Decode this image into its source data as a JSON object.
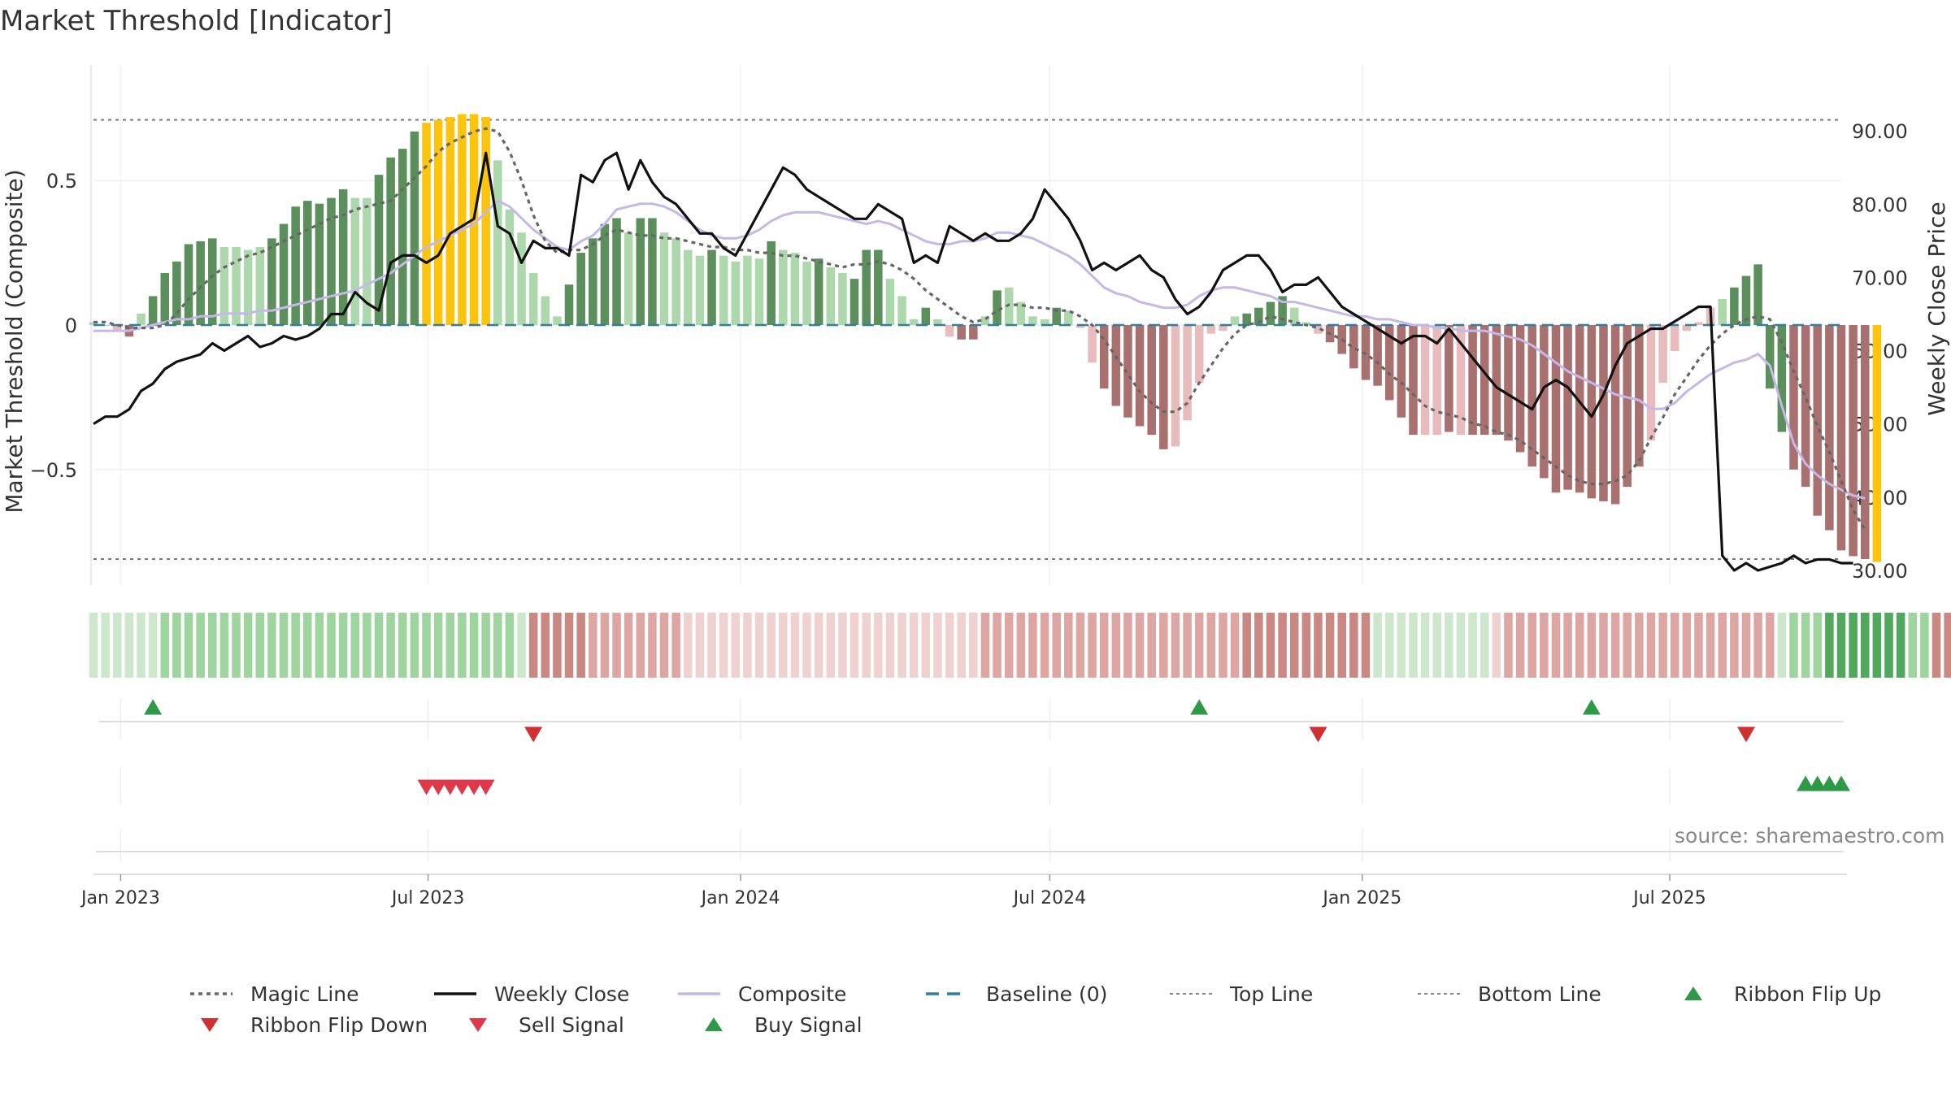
{
  "title": "Market Threshold [Indicator]",
  "source": "source: sharemaestro.com",
  "colors": {
    "strong_green": "#5b8f5b",
    "light_green": "#acd8ac",
    "strong_red": "#a8706e",
    "light_red": "#e8bcbc",
    "yellow": "#fcc40c",
    "close_line": "#111111",
    "composite_line": "#c5b8e8",
    "magic_line": "#666666",
    "baseline": "#2e7ea6",
    "ribbon_up": "#2e9a48",
    "ribbon_down": "#d03030",
    "sell": "#e03848",
    "buy": "#2e9a48"
  },
  "chart_data": {
    "type": "bar",
    "ylabel_left": "Market Threshold (Composite)",
    "ylabel_right": "Weekly Close Price",
    "ylim_left": [
      -0.9,
      0.9
    ],
    "ylim_right": [
      28,
      99
    ],
    "yticks_left": [
      -0.5,
      0,
      0.5
    ],
    "ytick_labels_left": [
      "−0.5",
      "0",
      "0.5"
    ],
    "yticks_right": [
      30,
      40,
      50,
      60,
      70,
      80,
      90
    ],
    "ytick_labels_right": [
      "30.00",
      "40.00",
      "50.00",
      "60.00",
      "70.00",
      "80.00",
      "90.00"
    ],
    "top_line": 0.71,
    "bottom_line": -0.81,
    "x_start": "2022-12-16",
    "x_end": "2025-10-10",
    "xticks": [
      "2023-01-01",
      "2023-07-01",
      "2024-01-01",
      "2024-07-01",
      "2025-01-01",
      "2025-07-01"
    ],
    "xtick_labels": [
      "Jan 2023",
      "Jul 2023",
      "Jan 2024",
      "Jul 2024",
      "Jan 2025",
      "Jul 2025"
    ],
    "weeks": 148,
    "first_week": "2022-12-16",
    "histogram": [
      0.01,
      0,
      -0.02,
      -0.04,
      0.04,
      0.1,
      0.18,
      0.22,
      0.28,
      0.29,
      0.3,
      0.27,
      0.27,
      0.26,
      0.27,
      0.3,
      0.35,
      0.41,
      0.43,
      0.42,
      0.44,
      0.47,
      0.44,
      0.44,
      0.52,
      0.58,
      0.61,
      0.67,
      0.7,
      0.71,
      0.72,
      0.73,
      0.73,
      0.72,
      0.57,
      0.4,
      0.32,
      0.18,
      0.1,
      0.03,
      0.14,
      0.25,
      0.3,
      0.35,
      0.37,
      0.32,
      0.37,
      0.37,
      0.32,
      0.3,
      0.26,
      0.24,
      0.26,
      0.24,
      0.22,
      0.24,
      0.23,
      0.29,
      0.26,
      0.25,
      0.22,
      0.23,
      0.2,
      0.18,
      0.16,
      0.26,
      0.26,
      0.16,
      0.1,
      0.02,
      0.06,
      0.02,
      -0.04,
      -0.05,
      -0.05,
      0.03,
      0.12,
      0.13,
      0.08,
      0.03,
      0.02,
      0.06,
      0.05,
      -0.01,
      -0.13,
      -0.22,
      -0.28,
      -0.32,
      -0.35,
      -0.38,
      -0.43,
      -0.42,
      -0.33,
      -0.2,
      -0.03,
      -0.02,
      0.03,
      0.04,
      0.06,
      0.08,
      0.1,
      0.06,
      0.01,
      -0.03,
      -0.06,
      -0.1,
      -0.15,
      -0.19,
      -0.21,
      -0.26,
      -0.32,
      -0.38,
      -0.38,
      -0.38,
      -0.37,
      -0.38,
      -0.38,
      -0.38,
      -0.38,
      -0.4,
      -0.44,
      -0.49,
      -0.53,
      -0.58,
      -0.57,
      -0.58,
      -0.6,
      -0.61,
      -0.62,
      -0.56,
      -0.49,
      -0.4,
      -0.2,
      -0.09,
      -0.02,
      0.01,
      0.06,
      0.09,
      0.13,
      0.17,
      0.21,
      -0.22,
      -0.37,
      -0.5,
      -0.56,
      -0.66,
      -0.71,
      -0.78,
      -0.8,
      -0.81,
      -0.82
    ],
    "hist_colors": [
      "light_green",
      "light_green",
      "light_red",
      "strong_red",
      "light_green",
      "strong_green",
      "strong_green",
      "strong_green",
      "strong_green",
      "strong_green",
      "strong_green",
      "light_green",
      "light_green",
      "light_green",
      "light_green",
      "strong_green",
      "strong_green",
      "strong_green",
      "strong_green",
      "strong_green",
      "strong_green",
      "strong_green",
      "light_green",
      "light_green",
      "strong_green",
      "strong_green",
      "strong_green",
      "strong_green",
      "yellow",
      "yellow",
      "yellow",
      "yellow",
      "yellow",
      "yellow",
      "light_green",
      "light_green",
      "light_green",
      "light_green",
      "light_green",
      "light_green",
      "strong_green",
      "strong_green",
      "strong_green",
      "strong_green",
      "strong_green",
      "light_green",
      "strong_green",
      "strong_green",
      "light_green",
      "light_green",
      "light_green",
      "light_green",
      "strong_green",
      "light_green",
      "light_green",
      "light_green",
      "light_green",
      "strong_green",
      "light_green",
      "light_green",
      "light_green",
      "strong_green",
      "light_green",
      "light_green",
      "strong_green",
      "strong_green",
      "strong_green",
      "light_green",
      "light_green",
      "light_green",
      "strong_green",
      "light_green",
      "light_red",
      "strong_red",
      "strong_red",
      "light_green",
      "strong_green",
      "light_green",
      "light_green",
      "light_green",
      "light_green",
      "strong_green",
      "light_green",
      "light_red",
      "light_red",
      "strong_red",
      "strong_red",
      "strong_red",
      "strong_red",
      "strong_red",
      "strong_red",
      "light_red",
      "light_red",
      "light_red",
      "light_red",
      "light_red",
      "light_green",
      "strong_green",
      "strong_green",
      "strong_green",
      "strong_green",
      "light_green",
      "light_green",
      "light_red",
      "strong_red",
      "strong_red",
      "strong_red",
      "strong_red",
      "strong_red",
      "strong_red",
      "strong_red",
      "strong_red",
      "light_red",
      "light_red",
      "strong_red",
      "light_red",
      "strong_red",
      "strong_red",
      "strong_red",
      "strong_red",
      "strong_red",
      "strong_red",
      "strong_red",
      "strong_red",
      "strong_red",
      "strong_red",
      "strong_red",
      "strong_red",
      "strong_red",
      "strong_red",
      "strong_red",
      "light_red",
      "light_red",
      "light_red",
      "light_red",
      "light_red",
      "light_red",
      "light_green",
      "strong_green",
      "strong_green",
      "strong_green",
      "strong_green",
      "strong_green",
      "strong_red",
      "strong_red",
      "strong_red",
      "strong_red",
      "strong_red",
      "strong_red",
      "strong_red",
      "yellow",
      "yellow",
      "yellow"
    ],
    "composite": [
      -0.02,
      -0.02,
      -0.02,
      -0.02,
      -0.01,
      0,
      0.01,
      0.02,
      0.02,
      0.03,
      0.03,
      0.04,
      0.04,
      0.04,
      0.05,
      0.05,
      0.06,
      0.07,
      0.08,
      0.09,
      0.1,
      0.11,
      0.12,
      0.14,
      0.16,
      0.18,
      0.21,
      0.24,
      0.27,
      0.29,
      0.31,
      0.33,
      0.35,
      0.39,
      0.43,
      0.41,
      0.37,
      0.33,
      0.3,
      0.27,
      0.26,
      0.29,
      0.31,
      0.35,
      0.4,
      0.41,
      0.42,
      0.42,
      0.41,
      0.39,
      0.36,
      0.33,
      0.31,
      0.3,
      0.3,
      0.31,
      0.33,
      0.36,
      0.38,
      0.39,
      0.39,
      0.39,
      0.38,
      0.37,
      0.36,
      0.35,
      0.36,
      0.35,
      0.33,
      0.31,
      0.29,
      0.28,
      0.28,
      0.29,
      0.29,
      0.3,
      0.32,
      0.32,
      0.31,
      0.3,
      0.28,
      0.26,
      0.24,
      0.21,
      0.17,
      0.13,
      0.11,
      0.1,
      0.08,
      0.07,
      0.06,
      0.06,
      0.07,
      0.1,
      0.12,
      0.13,
      0.13,
      0.12,
      0.11,
      0.1,
      0.08,
      0.08,
      0.07,
      0.06,
      0.05,
      0.04,
      0.03,
      0.03,
      0.02,
      0.02,
      0.01,
      0,
      0,
      -0.01,
      -0.01,
      -0.02,
      -0.02,
      -0.02,
      -0.03,
      -0.04,
      -0.05,
      -0.07,
      -0.1,
      -0.13,
      -0.16,
      -0.18,
      -0.2,
      -0.22,
      -0.24,
      -0.25,
      -0.26,
      -0.29,
      -0.29,
      -0.27,
      -0.23,
      -0.2,
      -0.17,
      -0.15,
      -0.13,
      -0.12,
      -0.1,
      -0.14,
      -0.28,
      -0.41,
      -0.48,
      -0.52,
      -0.55,
      -0.57,
      -0.59,
      -0.6
    ],
    "magic_line": [
      0.01,
      0.01,
      0,
      -0.01,
      -0.01,
      -0.01,
      0,
      0.04,
      0.09,
      0.13,
      0.17,
      0.2,
      0.22,
      0.24,
      0.25,
      0.27,
      0.29,
      0.31,
      0.33,
      0.35,
      0.37,
      0.38,
      0.4,
      0.41,
      0.42,
      0.43,
      0.47,
      0.51,
      0.55,
      0.6,
      0.63,
      0.65,
      0.67,
      0.68,
      0.67,
      0.6,
      0.5,
      0.38,
      0.29,
      0.25,
      0.26,
      0.26,
      0.28,
      0.31,
      0.33,
      0.32,
      0.31,
      0.31,
      0.3,
      0.3,
      0.29,
      0.28,
      0.27,
      0.27,
      0.26,
      0.26,
      0.25,
      0.25,
      0.24,
      0.24,
      0.23,
      0.22,
      0.21,
      0.2,
      0.21,
      0.21,
      0.22,
      0.21,
      0.19,
      0.16,
      0.12,
      0.09,
      0.06,
      0.03,
      0.01,
      0.02,
      0.05,
      0.07,
      0.07,
      0.06,
      0.06,
      0.05,
      0.05,
      0.03,
      0,
      -0.05,
      -0.11,
      -0.17,
      -0.23,
      -0.27,
      -0.3,
      -0.3,
      -0.27,
      -0.2,
      -0.14,
      -0.08,
      -0.03,
      0,
      0.01,
      0.03,
      0.02,
      0.01,
      0,
      -0.01,
      -0.03,
      -0.05,
      -0.08,
      -0.1,
      -0.13,
      -0.17,
      -0.2,
      -0.24,
      -0.28,
      -0.3,
      -0.31,
      -0.32,
      -0.34,
      -0.35,
      -0.37,
      -0.38,
      -0.4,
      -0.43,
      -0.46,
      -0.49,
      -0.52,
      -0.54,
      -0.55,
      -0.55,
      -0.54,
      -0.52,
      -0.47,
      -0.39,
      -0.32,
      -0.24,
      -0.18,
      -0.12,
      -0.07,
      -0.03,
      0,
      0.02,
      0.03,
      0.02,
      -0.06,
      -0.16,
      -0.25,
      -0.35,
      -0.44,
      -0.54,
      -0.64,
      -0.71
    ],
    "weekly_close": [
      50,
      51,
      51,
      52,
      54.5,
      55.5,
      57.5,
      58.5,
      59,
      59.5,
      61,
      60,
      61,
      62,
      60.5,
      61,
      62,
      61.5,
      62,
      63,
      65,
      65,
      68,
      66.5,
      65.5,
      72,
      73,
      73,
      72,
      73,
      76,
      77,
      78,
      87,
      77,
      76,
      72,
      75,
      74,
      74,
      73,
      84,
      83,
      86,
      87,
      82,
      86,
      83,
      81,
      80,
      78,
      76,
      76,
      74,
      73,
      76,
      79,
      82,
      85,
      84,
      82,
      81,
      80,
      79,
      78,
      78,
      80,
      79,
      78,
      72,
      73,
      72,
      77,
      76,
      75,
      76,
      75,
      75,
      76,
      78,
      82,
      80,
      78,
      75,
      71,
      72,
      71,
      72,
      73,
      71,
      70,
      67,
      65,
      66,
      68,
      71,
      72,
      73,
      73,
      71,
      68,
      69,
      69,
      70,
      68,
      66,
      65,
      64,
      63,
      62,
      61,
      62,
      62,
      61,
      63,
      61,
      59,
      57,
      55,
      54,
      53,
      52,
      55,
      56,
      55,
      53,
      51,
      54,
      58,
      61,
      62,
      63,
      63,
      64,
      65,
      66,
      66,
      32,
      30,
      31,
      30,
      30.5,
      31,
      32,
      31,
      31.5,
      31.5,
      31,
      31
    ],
    "ribbon": [
      1,
      1,
      1,
      1,
      1,
      1,
      2,
      2,
      2,
      2,
      2,
      2,
      2,
      2,
      2,
      2,
      2,
      2,
      2,
      2,
      2,
      2,
      2,
      2,
      2,
      2,
      2,
      2,
      2,
      2,
      2,
      2,
      2,
      2,
      2,
      2,
      1,
      -3,
      -3,
      -3,
      -3,
      -3,
      -2,
      -2,
      -2,
      -2,
      -2,
      -2,
      -2,
      -2,
      -1,
      -1,
      -1,
      -1,
      -1,
      -1,
      -1,
      -1,
      -1,
      -1,
      -1,
      -1,
      -1,
      -1,
      -1,
      -1,
      -1,
      -1,
      -1,
      -1,
      -1,
      -1,
      -1,
      -1,
      -1,
      -2,
      -2,
      -2,
      -2,
      -2,
      -2,
      -2,
      -2,
      -2,
      -2,
      -2,
      -2,
      -2,
      -2,
      -2,
      -2,
      -2,
      -2,
      -2,
      -2,
      -2,
      -2,
      -3,
      -3,
      -3,
      -3,
      -3,
      -3,
      -3,
      -3,
      -3,
      -3,
      -3,
      1,
      1,
      1,
      1,
      1,
      1,
      1,
      1,
      1,
      1,
      -1,
      -2,
      -2,
      -2,
      -2,
      -2,
      -2,
      -2,
      -2,
      -2,
      -2,
      -2,
      -2,
      -2,
      -2,
      -2,
      -2,
      -2,
      -2,
      -2,
      -2,
      -2,
      -2,
      -2,
      1,
      2,
      2,
      2,
      3,
      3,
      3,
      3,
      3,
      3,
      3,
      2,
      2,
      -3,
      -3,
      -3,
      -3,
      -3,
      -3,
      -4,
      -4,
      -4,
      -4
    ],
    "ribbon_colors": {
      "-4": "#c0574f",
      "-3": "#c98882",
      "-2": "#dea6a2",
      "-1": "#efd2cf",
      "1": "#cce7cc",
      "2": "#9ed49e",
      "3": "#4fa85c"
    },
    "ribbon_flip_up_weeks": [
      5,
      93,
      126
    ],
    "ribbon_flip_down_weeks": [
      37,
      103,
      139
    ],
    "sell_signal_weeks": [
      28,
      29,
      30,
      31,
      32,
      33
    ],
    "buy_signal_weeks": [
      144,
      145,
      146,
      147
    ],
    "legend": [
      {
        "label": "Magic Line",
        "marker": "dotted",
        "color": "#666666"
      },
      {
        "label": "Weekly Close",
        "marker": "solid",
        "color": "#111111"
      },
      {
        "label": "Composite",
        "marker": "solid",
        "color": "#c5b8e8"
      },
      {
        "label": "Baseline (0)",
        "marker": "dashed",
        "color": "#2e7ea6"
      },
      {
        "label": "Top Line",
        "marker": "dotted-fine",
        "color": "#888888"
      },
      {
        "label": "Bottom Line",
        "marker": "dotted-fine",
        "color": "#888888"
      },
      {
        "label": "Ribbon Flip Up",
        "marker": "triangle-up",
        "color": "#2e9a48"
      },
      {
        "label": "Ribbon Flip Down",
        "marker": "triangle-down",
        "color": "#d03030"
      },
      {
        "label": "Sell Signal",
        "marker": "triangle-down",
        "color": "#e03848"
      },
      {
        "label": "Buy Signal",
        "marker": "triangle-up",
        "color": "#2e9a48"
      }
    ]
  }
}
